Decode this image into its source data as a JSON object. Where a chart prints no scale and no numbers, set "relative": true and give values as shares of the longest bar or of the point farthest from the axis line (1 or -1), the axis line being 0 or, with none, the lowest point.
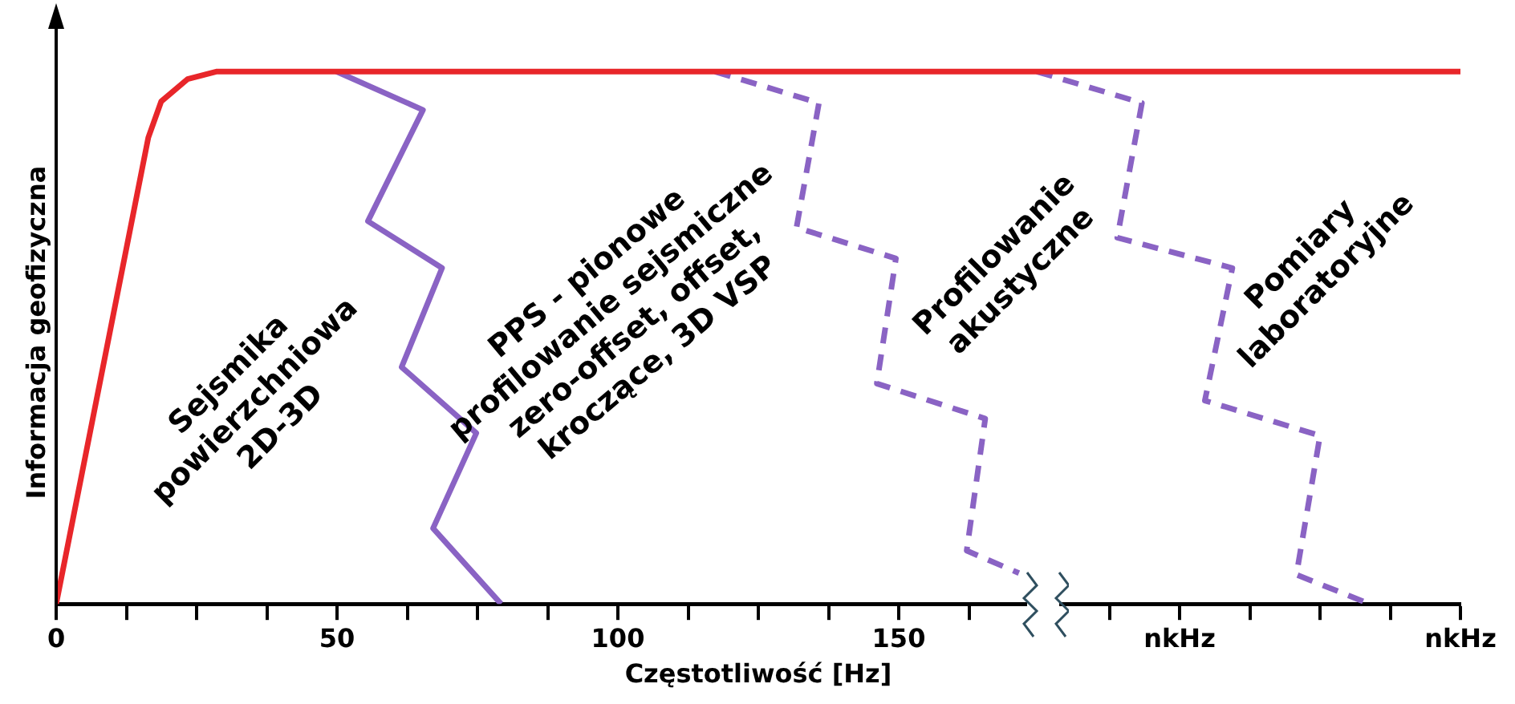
{
  "chart_data": {
    "type": "line",
    "relative": true,
    "xlabel": "Częstotliwość [Hz]",
    "ylabel": "Informacja geofizyczna",
    "xlim": [
      0,
      250
    ],
    "xticks": [
      0,
      {
        "value": 12.5,
        "label": null
      },
      {
        "value": 25,
        "label": null
      },
      {
        "value": 37.5,
        "label": null
      },
      50,
      {
        "value": 62.5,
        "label": null
      },
      {
        "value": 75,
        "label": null
      },
      {
        "value": 87.5,
        "label": null
      },
      100,
      {
        "value": 112.5,
        "label": null
      },
      {
        "value": 125,
        "label": null
      },
      {
        "value": 137.5,
        "label": null
      },
      150,
      {
        "value": 162.5,
        "label": null
      },
      {
        "value": 187.5,
        "label": null
      },
      {
        "value": 200,
        "label": "nkHz"
      },
      {
        "value": 212.5,
        "label": null
      },
      {
        "value": 225,
        "label": null
      },
      {
        "value": 237.5,
        "label": null
      },
      {
        "value": 250,
        "label": "nkHz"
      }
    ],
    "tick_labels": "x",
    "grid": false,
    "legend": false,
    "marker": "none",
    "series": [
      {
        "color": "#e8262a",
        "line_style": "solid",
        "x": [
          0,
          16.4,
          18.7,
          23.4,
          28.5,
          250
        ],
        "values": [
          0,
          0.876,
          0.944,
          0.986,
          1,
          1
        ]
      },
      {
        "color": "#8a63c4",
        "line_style": "solid",
        "x": [
          49.9,
          65.3,
          55.5,
          68.7,
          61.5,
          74.8,
          67.1,
          79.2
        ],
        "values": [
          1,
          0.928,
          0.719,
          0.631,
          0.445,
          0.321,
          0.142,
          0
        ]
      },
      {
        "color": "#8a63c4",
        "line_style": "dashed",
        "x": [
          117.3,
          135.8,
          131.8,
          149.5,
          146.1,
          165.4,
          162.1,
          171.4
        ],
        "values": [
          1,
          0.941,
          0.707,
          0.649,
          0.414,
          0.348,
          0.1,
          0.058
        ]
      },
      {
        "color": "#8a63c4",
        "line_style": "dashed",
        "x": [
          174.6,
          193.3,
          188.9,
          209.4,
          204.5,
          225,
          220.8,
          233.8
        ],
        "values": [
          1,
          0.941,
          0.688,
          0.631,
          0.382,
          0.316,
          0.055,
          0
        ]
      }
    ],
    "annotations": [
      "Sejsmika\npowierzchniowa\n2D-3D",
      "PPS - pionowe\nprofilowanie sejsmiczne\nzero-offset, offset,\nkroczące, 3D VSP",
      "Profilowanie\nakustyczne",
      "Pomiary\nlaboratoryjne"
    ]
  }
}
